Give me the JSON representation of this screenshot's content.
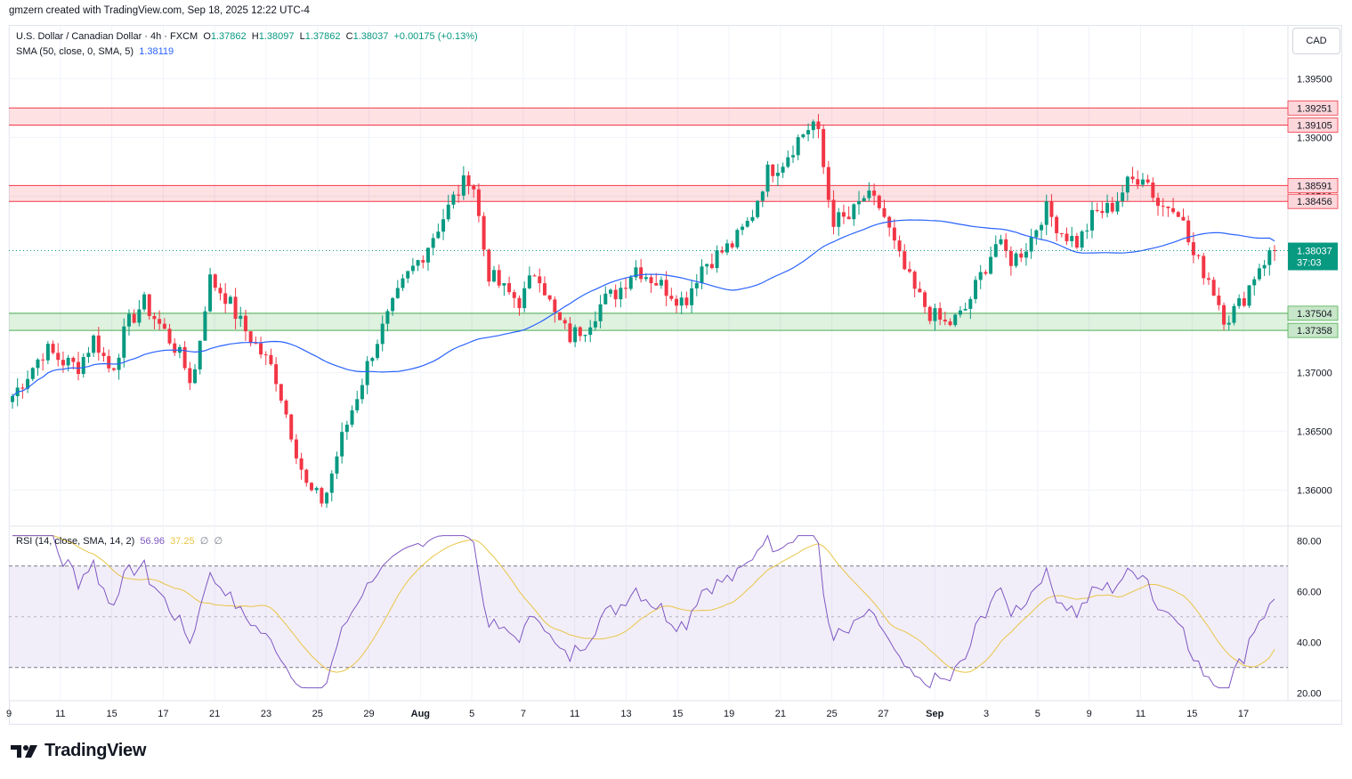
{
  "header": {
    "text": "gmzern created with TradingView.com, Sep 18, 2025 12:22 UTC-4"
  },
  "legend": {
    "symbol": "U.S. Dollar / Canadian Dollar · 4h · FXCM",
    "o_label": "O",
    "o_value": "1.37862",
    "h_label": "H",
    "h_value": "1.38097",
    "l_label": "L",
    "l_value": "1.37862",
    "c_label": "C",
    "c_value": "1.38037",
    "change": "+0.00175 (+0.13%)",
    "sma_label": "SMA (50, close, 0, SMA, 5)",
    "sma_value": "1.38119",
    "rsi_label": "RSI (14, close, SMA, 14, 2)",
    "rsi_value": "56.96",
    "rsi_sma_value": "37.25",
    "rsi_extra1": "∅",
    "rsi_extra2": "∅"
  },
  "currency_button": "CAD",
  "footer": {
    "logo_text": "TradingView"
  },
  "colors": {
    "up": "#089981",
    "down": "#f23645",
    "sma": "#2962ff",
    "rsi": "#7e57c2",
    "rsi_sma": "#e8c547",
    "resistance_zone": "#f23645",
    "support_zone": "#4caf50"
  },
  "chart_data": [
    {
      "type": "candlestick",
      "title": "U.S. Dollar / Canadian Dollar · 4h · FXCM",
      "ylim": [
        1.357,
        1.3995
      ],
      "y_ticks": [
        "1.36000",
        "1.36500",
        "1.37000",
        "1.37500",
        "1.38000",
        "1.38500",
        "1.39000",
        "1.39500"
      ],
      "x_ticks": [
        "9",
        "11",
        "15",
        "17",
        "21",
        "23",
        "25",
        "29",
        "Aug",
        "5",
        "7",
        "11",
        "13",
        "15",
        "19",
        "21",
        "25",
        "27",
        "Sep",
        "3",
        "5",
        "9",
        "11",
        "15",
        "17"
      ],
      "price_badges": [
        {
          "label": "1.39251",
          "value": 1.39251,
          "kind": "resistance"
        },
        {
          "label": "1.39105",
          "value": 1.39105,
          "kind": "resistance"
        },
        {
          "label": "1.38591",
          "value": 1.38591,
          "kind": "resistance"
        },
        {
          "label": "1.38456",
          "value": 1.38456,
          "kind": "resistance"
        },
        {
          "label": "1.37504",
          "value": 1.37504,
          "kind": "support"
        },
        {
          "label": "1.37358",
          "value": 1.37358,
          "kind": "support"
        }
      ],
      "last_price": {
        "label": "1.38037",
        "countdown": "37:03",
        "value": 1.38037
      },
      "zones": [
        {
          "top": 1.39251,
          "bottom": 1.39105,
          "kind": "resistance"
        },
        {
          "top": 1.38591,
          "bottom": 1.38456,
          "kind": "resistance"
        },
        {
          "top": 1.37504,
          "bottom": 1.37358,
          "kind": "support"
        }
      ],
      "close_path": [
        1.368,
        1.37,
        1.372,
        1.371,
        1.3705,
        1.373,
        1.37,
        1.374,
        1.376,
        1.374,
        1.372,
        1.369,
        1.378,
        1.3765,
        1.374,
        1.372,
        1.37,
        1.365,
        1.36,
        1.359,
        1.364,
        1.368,
        1.372,
        1.375,
        1.378,
        1.38,
        1.3825,
        1.385,
        1.387,
        1.3785,
        1.377,
        1.376,
        1.379,
        1.375,
        1.373,
        1.374,
        1.376,
        1.377,
        1.379,
        1.378,
        1.377,
        1.376,
        1.379,
        1.38,
        1.381,
        1.383,
        1.387,
        1.388,
        1.39,
        1.3915,
        1.383,
        1.383,
        1.385,
        1.384,
        1.38,
        1.377,
        1.375,
        1.374,
        1.375,
        1.378,
        1.381,
        1.3795,
        1.381,
        1.384,
        1.382,
        1.381,
        1.3835,
        1.384,
        1.386,
        1.387,
        1.384,
        1.3845,
        1.38,
        1.378,
        1.3745,
        1.376,
        1.379,
        1.3805
      ],
      "sma": {
        "name": "SMA (50, close, 0, SMA, 5)",
        "last": 1.38119
      },
      "rsi": {
        "ylim": [
          18,
          85
        ],
        "y_ticks": [
          "20.00",
          "40.00",
          "60.00",
          "80.00"
        ],
        "bands": [
          70,
          30
        ],
        "last": 56.96,
        "sma_last": 37.25
      }
    }
  ]
}
